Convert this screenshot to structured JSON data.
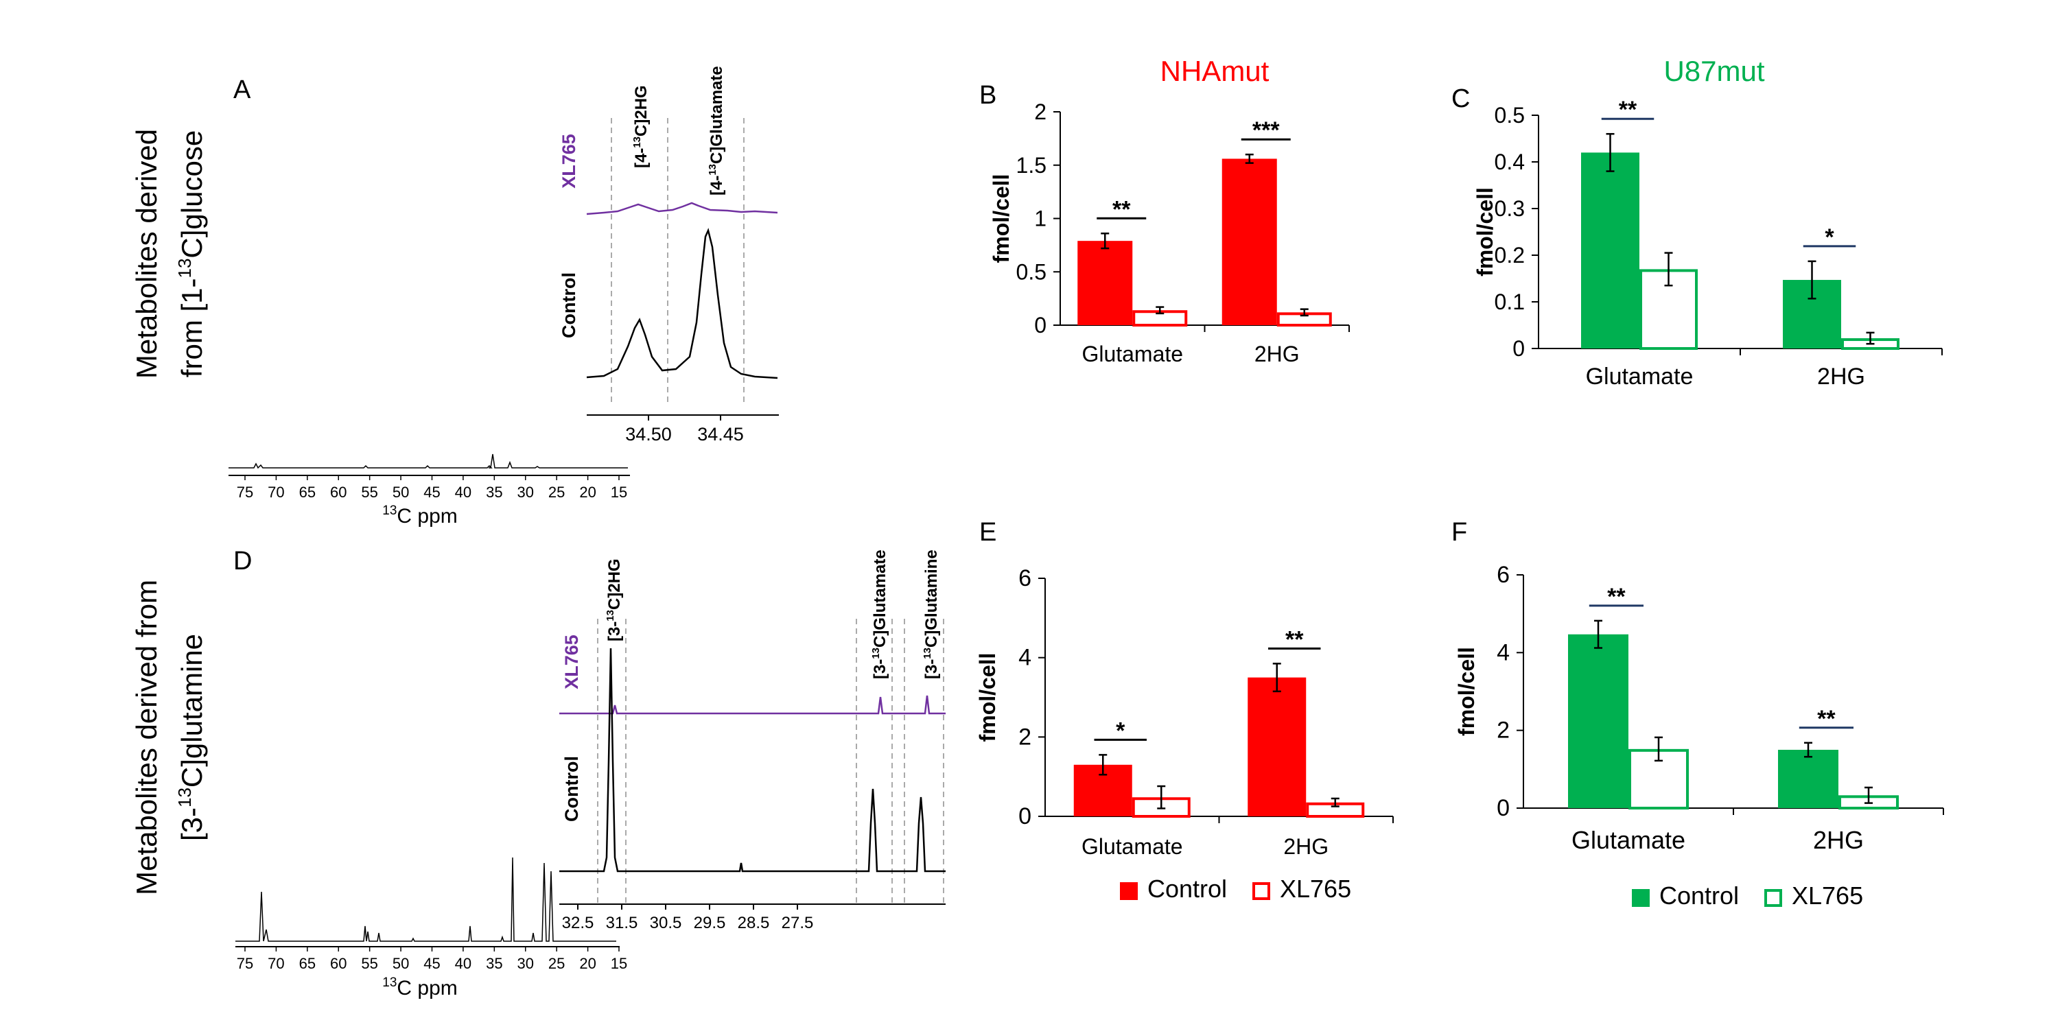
{
  "colors": {
    "red": "#ff0000",
    "green": "#00b050",
    "purple": "#7030a0",
    "black": "#000000",
    "sig_line_green_panels": "#1f3864"
  },
  "row_titles": {
    "top": [
      "Metabolites derived",
      "from [1-",
      "13",
      "C]glucose"
    ],
    "bottom": [
      "Metabolites derived from",
      "[3-",
      "13",
      "C]glutamine"
    ]
  },
  "panel_letters": {
    "A": "A",
    "B": "B",
    "C": "C",
    "D": "D",
    "E": "E",
    "F": "F"
  },
  "group_titles": {
    "nha": "NHAmut",
    "u87": "U87mut"
  },
  "nmr": {
    "A": {
      "xlabel_sup": "13",
      "xlabel": "C ppm",
      "full_ticks": [
        "75",
        "70",
        "65",
        "60",
        "55",
        "50",
        "45",
        "40",
        "35",
        "30",
        "25",
        "20",
        "15"
      ],
      "zoom_ticks": [
        "34.50",
        "34.45"
      ],
      "trace_labels": {
        "top": "XL765",
        "bottom": "Control"
      },
      "peak_labels": [
        {
          "pre": "[4-",
          "sup": "13",
          "post": "C]2HG"
        },
        {
          "pre": "[4-",
          "sup": "13",
          "post": "C]Glutamate"
        }
      ]
    },
    "D": {
      "xlabel_sup": "13",
      "xlabel": "C ppm",
      "full_ticks": [
        "75",
        "70",
        "65",
        "60",
        "55",
        "50",
        "45",
        "40",
        "35",
        "30",
        "25",
        "20",
        "15"
      ],
      "zoom_ticks": [
        "32.5",
        "31.5",
        "30.5",
        "29.5",
        "28.5",
        "27.5"
      ],
      "trace_labels": {
        "top": "XL765",
        "bottom": "Control"
      },
      "peak_labels": [
        {
          "pre": "[3-",
          "sup": "13",
          "post": "C]2HG"
        },
        {
          "pre": "[3-",
          "sup": "13",
          "post": "C]Glutamate"
        },
        {
          "pre": "[3-",
          "sup": "13",
          "post": "C]Glutamine"
        }
      ]
    }
  },
  "chart_data": [
    {
      "panel": "B",
      "type": "bar",
      "title": "NHAmut",
      "ylabel": "fmol/cell",
      "categories": [
        "Glutamate",
        "2HG"
      ],
      "ylim": [
        0,
        2
      ],
      "yticks": [
        "0",
        "0.5",
        "1",
        "1.5",
        "2"
      ],
      "series": [
        {
          "name": "Control",
          "values": [
            0.79,
            1.56
          ],
          "errors": [
            0.07,
            0.04
          ]
        },
        {
          "name": "XL765",
          "values": [
            0.14,
            0.12
          ],
          "errors": [
            0.03,
            0.03
          ]
        }
      ],
      "significance": [
        "**",
        "***"
      ]
    },
    {
      "panel": "C",
      "type": "bar",
      "title": "U87mut",
      "ylabel": "fmol/cell",
      "categories": [
        "Glutamate",
        "2HG"
      ],
      "ylim": [
        0,
        0.5
      ],
      "yticks": [
        "0",
        "0.1",
        "0.2",
        "0.3",
        "0.4",
        "0.5"
      ],
      "series": [
        {
          "name": "Control",
          "values": [
            0.42,
            0.147
          ],
          "errors": [
            0.04,
            0.04
          ]
        },
        {
          "name": "XL765",
          "values": [
            0.17,
            0.022
          ],
          "errors": [
            0.035,
            0.012
          ]
        }
      ],
      "significance": [
        "**",
        "*"
      ]
    },
    {
      "panel": "E",
      "type": "bar",
      "ylabel": "fmol/cell",
      "categories": [
        "Glutamate",
        "2HG"
      ],
      "ylim": [
        0,
        6
      ],
      "yticks": [
        "0",
        "2",
        "4",
        "6"
      ],
      "series": [
        {
          "name": "Control",
          "values": [
            1.3,
            3.5
          ],
          "errors": [
            0.25,
            0.35
          ]
        },
        {
          "name": "XL765",
          "values": [
            0.48,
            0.35
          ],
          "errors": [
            0.28,
            0.1
          ]
        }
      ],
      "significance": [
        "*",
        "**"
      ],
      "legend": [
        "Control",
        "XL765"
      ]
    },
    {
      "panel": "F",
      "type": "bar",
      "ylabel": "fmol/cell",
      "categories": [
        "Glutamate",
        "2HG"
      ],
      "ylim": [
        0,
        6
      ],
      "yticks": [
        "0",
        "2",
        "4",
        "6"
      ],
      "series": [
        {
          "name": "Control",
          "values": [
            4.47,
            1.5
          ],
          "errors": [
            0.35,
            0.18
          ]
        },
        {
          "name": "XL765",
          "values": [
            1.52,
            0.33
          ],
          "errors": [
            0.3,
            0.2
          ]
        }
      ],
      "significance": [
        "**",
        "**"
      ],
      "legend": [
        "Control",
        "XL765"
      ]
    }
  ]
}
